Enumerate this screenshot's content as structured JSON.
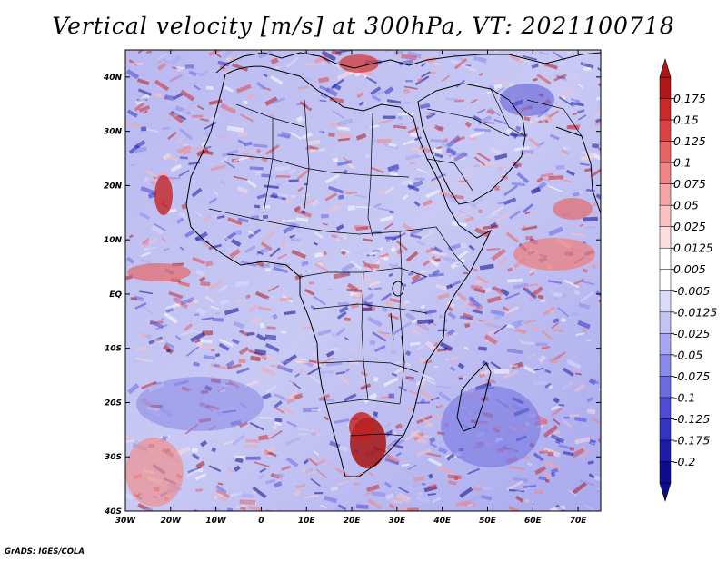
{
  "title": "Vertical velocity [m/s] at 300hPa, VT: 2021100718",
  "credit": "GrADS: IGES/COLA",
  "map": {
    "lon_range": [
      -30,
      75
    ],
    "lat_range": [
      -40,
      45
    ],
    "x_ticks": [
      "30W",
      "20W",
      "10W",
      "0",
      "10E",
      "20E",
      "30E",
      "40E",
      "50E",
      "60E",
      "70E"
    ],
    "y_ticks": [
      "40N",
      "30N",
      "20N",
      "10N",
      "EQ",
      "10S",
      "20S",
      "30S",
      "40S"
    ],
    "colorbar_levels": [
      "0.175",
      "0.15",
      "0.125",
      "0.1",
      "0.075",
      "0.05",
      "0.025",
      "0.0125",
      "0.005",
      "-0.005",
      "-0.0125",
      "-0.025",
      "-0.05",
      "-0.075",
      "-0.1",
      "-0.125",
      "-0.175",
      "-0.2"
    ],
    "colorbar_colors": [
      "#b01818",
      "#c82a2a",
      "#dc4444",
      "#e86363",
      "#f08585",
      "#f5a5a5",
      "#f9c3c3",
      "#fcdede",
      "#ffffff",
      "#ffffff",
      "#dcdcfa",
      "#c3c3f5",
      "#a8a8f0",
      "#8a8aea",
      "#6b6be2",
      "#4d4dd6",
      "#3333c4",
      "#1c1ca8",
      "#0c0c8c"
    ]
  }
}
